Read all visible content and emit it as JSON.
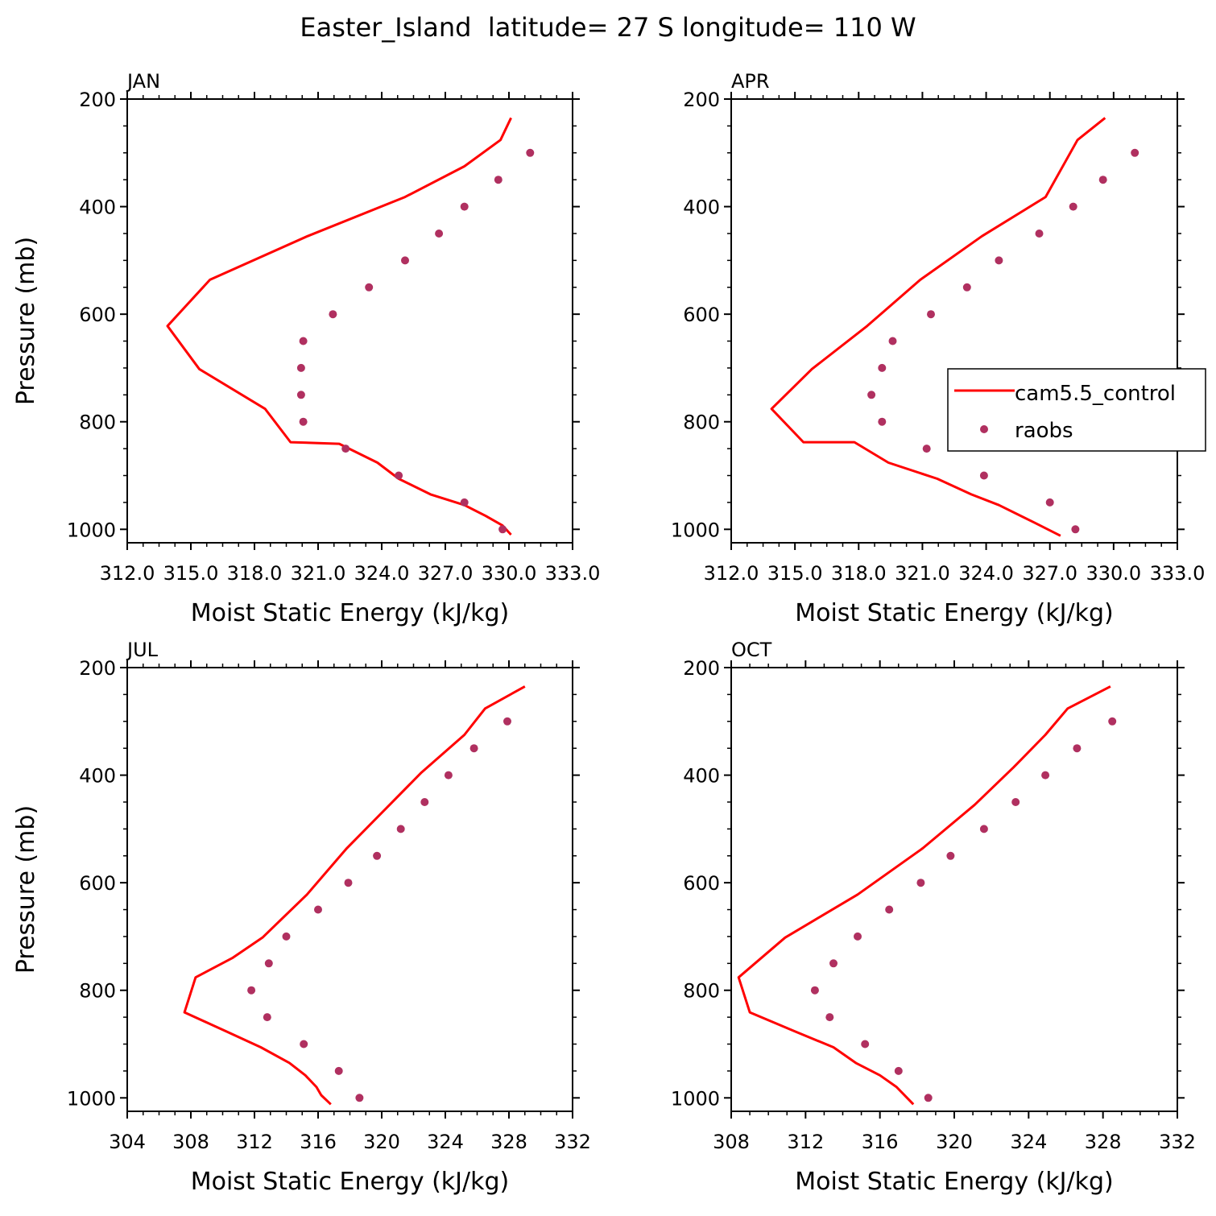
{
  "figure_title": "Easter_Island  latitude= 27 S longitude= 110 W",
  "colors": {
    "model": "#ff0000",
    "obs": "#b03060",
    "axis": "#000000"
  },
  "legend": {
    "model_label": "cam5.5_control",
    "obs_label": "raobs",
    "placement": "right of APR panel"
  },
  "chart_data": [
    {
      "panel": "JAN",
      "type": "line",
      "xlabel": "Moist Static Energy (kJ/kg)",
      "ylabel": "Pressure (mb)",
      "xlim": [
        312,
        333
      ],
      "x_tick_labels": [
        "312.0",
        "315.0",
        "318.0",
        "321.0",
        "324.0",
        "327.0",
        "330.0",
        "333.0"
      ],
      "ylim": [
        1025,
        200
      ],
      "y_ticks": [
        200,
        400,
        600,
        800,
        1000
      ],
      "y_tick_labels": [
        "200",
        "400",
        "600",
        "800",
        "1000"
      ],
      "grid": false,
      "series": [
        {
          "name": "cam5.5_control",
          "kind": "line",
          "x": [
            330.1,
            329.7,
            328.9,
            327.9,
            326.3,
            324.8,
            323.8,
            322.0,
            319.7,
            318.5,
            315.4,
            313.9,
            315.9,
            320.5,
            325.1,
            327.9,
            329.6,
            330.1
          ],
          "y": [
            1010,
            993,
            975,
            955,
            935,
            906,
            876,
            841,
            838,
            776,
            702,
            622,
            536,
            455,
            382,
            325,
            276,
            235
          ]
        },
        {
          "name": "raobs",
          "kind": "scatter",
          "x": [
            329.7,
            327.9,
            324.8,
            322.3,
            320.3,
            320.2,
            320.2,
            320.3,
            321.7,
            323.4,
            325.1,
            326.7,
            327.9,
            329.5,
            331.0
          ],
          "y": [
            1000,
            950,
            900,
            850,
            800,
            750,
            700,
            650,
            600,
            550,
            500,
            450,
            400,
            350,
            300
          ]
        }
      ]
    },
    {
      "panel": "APR",
      "type": "line",
      "xlabel": "Moist Static Energy (kJ/kg)",
      "ylabel": "",
      "xlim": [
        312,
        333
      ],
      "x_tick_labels": [
        "312.0",
        "315.0",
        "318.0",
        "321.0",
        "324.0",
        "327.0",
        "330.0",
        "333.0"
      ],
      "ylim": [
        1025,
        200
      ],
      "y_ticks": [
        200,
        400,
        600,
        800,
        1000
      ],
      "y_tick_labels": [
        "200",
        "400",
        "600",
        "800",
        "1000"
      ],
      "grid": false,
      "series": [
        {
          "name": "cam5.5_control",
          "kind": "line",
          "x": [
            327.5,
            326.3,
            324.6,
            323.3,
            321.7,
            319.4,
            317.8,
            315.4,
            313.9,
            315.8,
            318.4,
            320.9,
            323.8,
            326.8,
            328.3,
            329.6
          ],
          "y": [
            1012,
            988,
            955,
            935,
            906,
            876,
            838,
            838,
            776,
            702,
            622,
            536,
            455,
            382,
            276,
            235
          ]
        },
        {
          "name": "raobs",
          "kind": "scatter",
          "x": [
            328.2,
            327.0,
            323.9,
            321.2,
            319.1,
            318.6,
            319.1,
            319.6,
            321.4,
            323.1,
            324.6,
            326.5,
            328.1,
            329.5,
            331.0
          ],
          "y": [
            1000,
            950,
            900,
            850,
            800,
            750,
            700,
            650,
            600,
            550,
            500,
            450,
            400,
            350,
            300
          ]
        }
      ]
    },
    {
      "panel": "JUL",
      "type": "line",
      "xlabel": "Moist Static Energy (kJ/kg)",
      "ylabel": "Pressure (mb)",
      "xlim": [
        304,
        332
      ],
      "x_tick_labels": [
        "304",
        "308",
        "312",
        "316",
        "320",
        "324",
        "328",
        "332"
      ],
      "ylim": [
        1025,
        200
      ],
      "y_ticks": [
        200,
        400,
        600,
        800,
        1000
      ],
      "y_tick_labels": [
        "200",
        "400",
        "600",
        "800",
        "1000"
      ],
      "grid": false,
      "series": [
        {
          "name": "cam5.5_control",
          "kind": "line",
          "x": [
            316.8,
            316.2,
            315.9,
            315.2,
            314.2,
            312.4,
            310.2,
            307.6,
            308.3,
            310.6,
            312.5,
            315.3,
            317.8,
            320.5,
            322.5,
            325.2,
            326.5,
            329.0
          ],
          "y": [
            1012,
            995,
            980,
            958,
            935,
            906,
            876,
            841,
            776,
            740,
            702,
            622,
            536,
            455,
            395,
            325,
            276,
            235
          ]
        },
        {
          "name": "raobs",
          "kind": "scatter",
          "x": [
            318.6,
            317.3,
            315.1,
            312.8,
            311.8,
            312.9,
            314.0,
            316.0,
            317.9,
            319.7,
            321.2,
            322.7,
            324.2,
            325.8,
            327.9
          ],
          "y": [
            1000,
            950,
            900,
            850,
            800,
            750,
            700,
            650,
            600,
            550,
            500,
            450,
            400,
            350,
            300
          ]
        }
      ]
    },
    {
      "panel": "OCT",
      "type": "line",
      "xlabel": "Moist Static Energy (kJ/kg)",
      "ylabel": "",
      "xlim": [
        308,
        332
      ],
      "x_tick_labels": [
        "308",
        "312",
        "316",
        "320",
        "324",
        "328",
        "332"
      ],
      "ylim": [
        1025,
        200
      ],
      "y_ticks": [
        200,
        400,
        600,
        800,
        1000
      ],
      "y_tick_labels": [
        "200",
        "400",
        "600",
        "800",
        "1000"
      ],
      "grid": false,
      "series": [
        {
          "name": "cam5.5_control",
          "kind": "line",
          "x": [
            317.8,
            316.9,
            316.0,
            314.7,
            313.5,
            311.4,
            309.0,
            308.4,
            310.9,
            314.8,
            318.3,
            321.1,
            323.2,
            324.9,
            326.1,
            328.4
          ],
          "y": [
            1012,
            980,
            958,
            935,
            906,
            876,
            841,
            776,
            702,
            622,
            536,
            455,
            385,
            325,
            276,
            235
          ]
        },
        {
          "name": "raobs",
          "kind": "scatter",
          "x": [
            318.6,
            317.0,
            315.2,
            313.3,
            312.5,
            313.5,
            314.8,
            316.5,
            318.2,
            319.8,
            321.6,
            323.3,
            324.9,
            326.6,
            328.5
          ],
          "y": [
            1000,
            950,
            900,
            850,
            800,
            750,
            700,
            650,
            600,
            550,
            500,
            450,
            400,
            350,
            300
          ]
        }
      ]
    }
  ]
}
